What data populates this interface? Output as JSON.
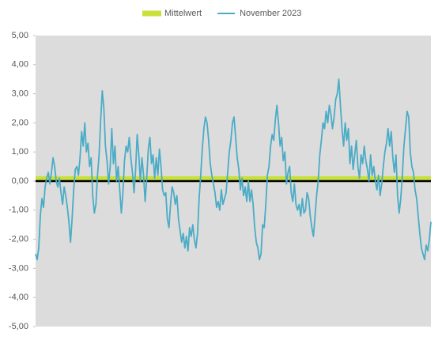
{
  "chart_data": {
    "type": "line",
    "ylim": [
      -5,
      5
    ],
    "yticks": [
      {
        "value": 5,
        "label": "5,00"
      },
      {
        "value": 4,
        "label": "4,00"
      },
      {
        "value": 3,
        "label": "3,00"
      },
      {
        "value": 2,
        "label": "2,00"
      },
      {
        "value": 1,
        "label": "1,00"
      },
      {
        "value": 0,
        "label": "0,00"
      },
      {
        "value": -1,
        "label": "-1,00"
      },
      {
        "value": -2,
        "label": "-2,00"
      },
      {
        "value": -3,
        "label": "-3,00"
      },
      {
        "value": -4,
        "label": "-4,00"
      },
      {
        "value": -5,
        "label": "-5,00"
      }
    ],
    "legend": "top",
    "series": [
      {
        "name": "Mittelwert",
        "color": "#c8e03a",
        "value": 0.07
      },
      {
        "name": "November 2023",
        "color": "#4bacc6",
        "values": [
          -2.5,
          -2.7,
          -2.3,
          -1.2,
          -0.6,
          -0.9,
          -0.2,
          0.1,
          0.3,
          -0.1,
          0.3,
          0.8,
          0.5,
          0.0,
          -0.2,
          0.1,
          -0.4,
          -0.8,
          -0.2,
          -0.5,
          -0.9,
          -1.4,
          -2.1,
          -1.3,
          -0.3,
          0.4,
          0.5,
          0.2,
          0.8,
          1.7,
          1.2,
          2.0,
          1.0,
          1.3,
          0.5,
          0.8,
          -0.5,
          -1.1,
          -0.8,
          0.2,
          0.9,
          2.1,
          3.1,
          2.5,
          1.2,
          0.7,
          -0.1,
          0.5,
          1.8,
          0.6,
          1.2,
          0.0,
          0.5,
          -0.3,
          -1.1,
          -0.4,
          0.7,
          1.2,
          1.0,
          1.5,
          0.8,
          0.3,
          -0.4,
          0.4,
          1.6,
          0.9,
          0.0,
          0.8,
          0.2,
          -0.7,
          0.1,
          1.1,
          1.5,
          0.6,
          0.9,
          0.1,
          0.8,
          0.2,
          1.1,
          0.5,
          -0.3,
          -0.5,
          -0.4,
          -1.3,
          -1.6,
          -0.8,
          -0.2,
          -0.4,
          -0.8,
          -0.5,
          -1.3,
          -1.7,
          -2.1,
          -1.8,
          -2.3,
          -1.9,
          -2.4,
          -1.6,
          -1.9,
          -1.5,
          -2.0,
          -2.3,
          -1.8,
          -0.6,
          0.2,
          1.1,
          1.8,
          2.2,
          2.0,
          1.4,
          0.6,
          0.2,
          -0.1,
          -0.4,
          -0.9,
          -0.7,
          -1.0,
          -0.3,
          -0.8,
          -0.6,
          -0.4,
          0.3,
          1.0,
          1.4,
          2.0,
          2.2,
          1.5,
          0.8,
          0.4,
          -0.3,
          0.1,
          -0.5,
          -0.2,
          -0.7,
          0.0,
          -0.7,
          -0.3,
          -0.8,
          -1.6,
          -2.1,
          -2.3,
          -2.7,
          -2.5,
          -1.5,
          -1.6,
          -0.8,
          0.2,
          0.5,
          1.2,
          1.6,
          1.4,
          2.1,
          2.6,
          2.0,
          1.2,
          1.5,
          0.7,
          1.0,
          -0.1,
          0.3,
          0.5,
          -0.4,
          -0.7,
          -0.1,
          -0.8,
          -1.0,
          -0.8,
          -1.2,
          -0.6,
          -1.1,
          -1.0,
          -0.4,
          -0.6,
          -1.2,
          -1.6,
          -1.9,
          -1.2,
          -0.5,
          0.0,
          0.9,
          1.4,
          2.0,
          1.8,
          2.4,
          2.0,
          2.6,
          2.3,
          1.8,
          2.2,
          2.8,
          3.0,
          3.5,
          2.6,
          1.8,
          1.2,
          2.0,
          1.4,
          1.8,
          0.6,
          1.2,
          0.4,
          0.9,
          1.4,
          0.5,
          0.1,
          0.9,
          0.6,
          1.2,
          0.7,
          0.4,
          0.0,
          0.9,
          0.2,
          0.5,
          0.0,
          -0.3,
          0.2,
          -0.5,
          -0.1,
          0.5,
          1.0,
          1.3,
          1.8,
          1.2,
          1.7,
          0.8,
          0.3,
          0.9,
          -0.5,
          -1.1,
          -0.6,
          0.2,
          1.2,
          1.8,
          2.4,
          2.2,
          1.0,
          0.5,
          0.3,
          -0.3,
          -0.6,
          -1.2,
          -1.8,
          -2.3,
          -2.5,
          -2.7,
          -2.2,
          -2.4,
          -2.0,
          -1.4
        ]
      }
    ]
  }
}
